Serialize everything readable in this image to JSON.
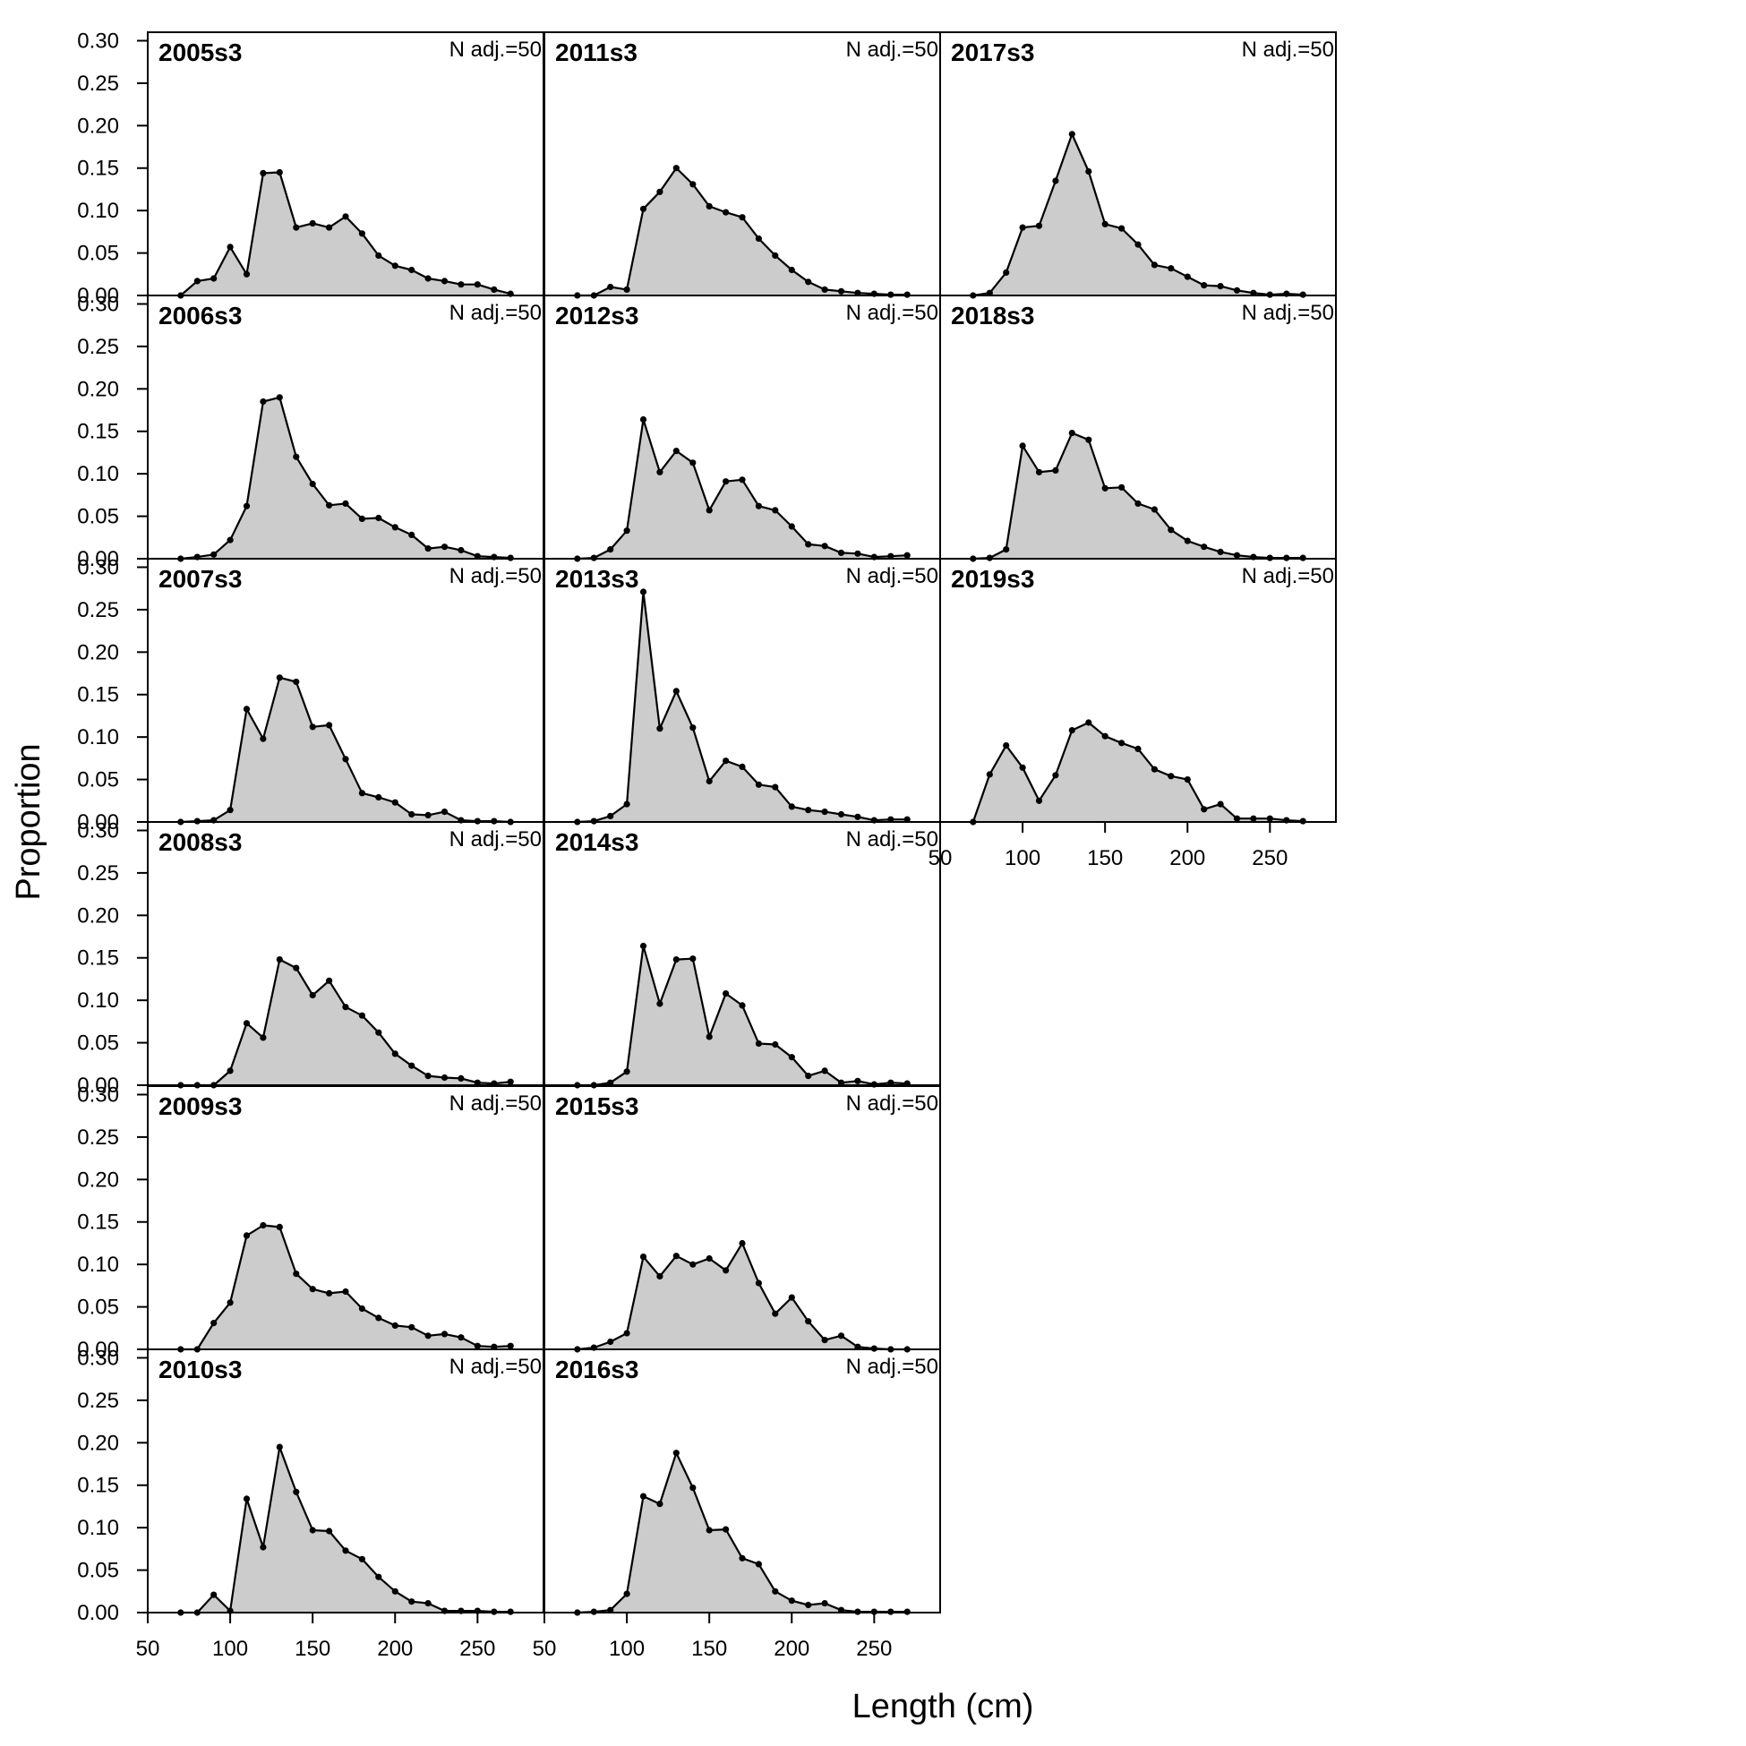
{
  "chart_data": {
    "type": "area",
    "xlabel": "Length (cm)",
    "ylabel": "Proportion",
    "xlim": [
      50,
      290
    ],
    "ylim": [
      0,
      0.31
    ],
    "xticks": [
      50,
      100,
      150,
      200,
      250
    ],
    "yticks": [
      0.0,
      0.05,
      0.1,
      0.15,
      0.2,
      0.25,
      0.3
    ],
    "ytick_labels": [
      "0.00",
      "0.05",
      "0.10",
      "0.15",
      "0.20",
      "0.25",
      "0.30"
    ],
    "x": [
      70,
      80,
      90,
      100,
      110,
      120,
      130,
      140,
      150,
      160,
      170,
      180,
      190,
      200,
      210,
      220,
      230,
      240,
      250,
      260,
      270
    ],
    "fill_color": "#cccccc",
    "line_color": "#000000",
    "panels": [
      {
        "label": "2005s3",
        "n_label": "N adj.=50",
        "values": [
          0.0,
          0.017,
          0.02,
          0.057,
          0.025,
          0.144,
          0.145,
          0.08,
          0.085,
          0.08,
          0.093,
          0.073,
          0.047,
          0.035,
          0.03,
          0.02,
          0.017,
          0.013,
          0.013,
          0.007,
          0.002
        ]
      },
      {
        "label": "2006s3",
        "n_label": "N adj.=50",
        "values": [
          0.0,
          0.002,
          0.005,
          0.022,
          0.062,
          0.185,
          0.19,
          0.12,
          0.088,
          0.063,
          0.065,
          0.047,
          0.048,
          0.037,
          0.028,
          0.012,
          0.014,
          0.01,
          0.003,
          0.002,
          0.001
        ]
      },
      {
        "label": "2007s3",
        "n_label": "N adj.=50",
        "values": [
          0.0,
          0.001,
          0.002,
          0.014,
          0.133,
          0.098,
          0.17,
          0.165,
          0.112,
          0.114,
          0.074,
          0.034,
          0.029,
          0.023,
          0.009,
          0.008,
          0.012,
          0.002,
          0.001,
          0.001,
          0.0
        ]
      },
      {
        "label": "2008s3",
        "n_label": "N adj.=50",
        "values": [
          0.0,
          0.0,
          0.0,
          0.017,
          0.073,
          0.056,
          0.148,
          0.138,
          0.106,
          0.123,
          0.092,
          0.082,
          0.062,
          0.037,
          0.023,
          0.011,
          0.009,
          0.008,
          0.003,
          0.002,
          0.004
        ]
      },
      {
        "label": "2009s3",
        "n_label": "N adj.=50",
        "values": [
          0.0,
          0.0,
          0.031,
          0.055,
          0.134,
          0.146,
          0.144,
          0.089,
          0.071,
          0.066,
          0.068,
          0.048,
          0.037,
          0.028,
          0.026,
          0.016,
          0.018,
          0.014,
          0.004,
          0.003,
          0.004
        ]
      },
      {
        "label": "2010s3",
        "n_label": "N adj.=50",
        "values": [
          0.0,
          0.0,
          0.021,
          0.002,
          0.134,
          0.077,
          0.195,
          0.142,
          0.097,
          0.096,
          0.073,
          0.063,
          0.042,
          0.025,
          0.013,
          0.011,
          0.002,
          0.002,
          0.002,
          0.001,
          0.001
        ]
      },
      {
        "label": "2011s3",
        "n_label": "N adj.=50",
        "values": [
          0.0,
          0.0,
          0.01,
          0.007,
          0.102,
          0.122,
          0.15,
          0.131,
          0.105,
          0.098,
          0.092,
          0.067,
          0.047,
          0.03,
          0.016,
          0.007,
          0.005,
          0.003,
          0.002,
          0.001,
          0.001
        ]
      },
      {
        "label": "2012s3",
        "n_label": "N adj.=50",
        "values": [
          0.0,
          0.001,
          0.011,
          0.033,
          0.164,
          0.102,
          0.127,
          0.113,
          0.057,
          0.091,
          0.093,
          0.062,
          0.057,
          0.038,
          0.017,
          0.015,
          0.007,
          0.006,
          0.002,
          0.003,
          0.004
        ]
      },
      {
        "label": "2013s3",
        "n_label": "N adj.=50",
        "values": [
          0.0,
          0.001,
          0.007,
          0.021,
          0.271,
          0.11,
          0.154,
          0.111,
          0.048,
          0.072,
          0.065,
          0.044,
          0.041,
          0.018,
          0.014,
          0.012,
          0.009,
          0.006,
          0.002,
          0.003,
          0.003
        ]
      },
      {
        "label": "2014s3",
        "n_label": "N adj.=50",
        "values": [
          0.0,
          0.0,
          0.003,
          0.016,
          0.164,
          0.096,
          0.148,
          0.149,
          0.057,
          0.108,
          0.094,
          0.049,
          0.048,
          0.033,
          0.011,
          0.017,
          0.003,
          0.005,
          0.001,
          0.003,
          0.002
        ]
      },
      {
        "label": "2015s3",
        "n_label": "N adj.=50",
        "values": [
          0.0,
          0.002,
          0.009,
          0.019,
          0.109,
          0.086,
          0.11,
          0.1,
          0.107,
          0.093,
          0.125,
          0.078,
          0.042,
          0.061,
          0.033,
          0.011,
          0.016,
          0.003,
          0.001,
          0.0,
          0.0
        ]
      },
      {
        "label": "2016s3",
        "n_label": "N adj.=50",
        "values": [
          0.0,
          0.001,
          0.003,
          0.022,
          0.137,
          0.128,
          0.188,
          0.147,
          0.097,
          0.098,
          0.064,
          0.057,
          0.025,
          0.014,
          0.009,
          0.011,
          0.003,
          0.001,
          0.001,
          0.001,
          0.001
        ]
      },
      {
        "label": "2017s3",
        "n_label": "N adj.=50",
        "values": [
          0.0,
          0.003,
          0.027,
          0.08,
          0.082,
          0.135,
          0.19,
          0.146,
          0.084,
          0.079,
          0.06,
          0.036,
          0.032,
          0.022,
          0.012,
          0.011,
          0.006,
          0.003,
          0.001,
          0.002,
          0.001
        ]
      },
      {
        "label": "2018s3",
        "n_label": "N adj.=50",
        "values": [
          0.0,
          0.001,
          0.011,
          0.133,
          0.102,
          0.104,
          0.148,
          0.14,
          0.083,
          0.084,
          0.065,
          0.058,
          0.034,
          0.021,
          0.014,
          0.008,
          0.004,
          0.002,
          0.001,
          0.001,
          0.001
        ]
      },
      {
        "label": "2019s3",
        "n_label": "N adj.=50",
        "values": [
          0.0,
          0.056,
          0.09,
          0.064,
          0.025,
          0.055,
          0.108,
          0.117,
          0.101,
          0.093,
          0.086,
          0.062,
          0.054,
          0.05,
          0.015,
          0.021,
          0.004,
          0.004,
          0.004,
          0.002,
          0.001
        ]
      }
    ]
  }
}
